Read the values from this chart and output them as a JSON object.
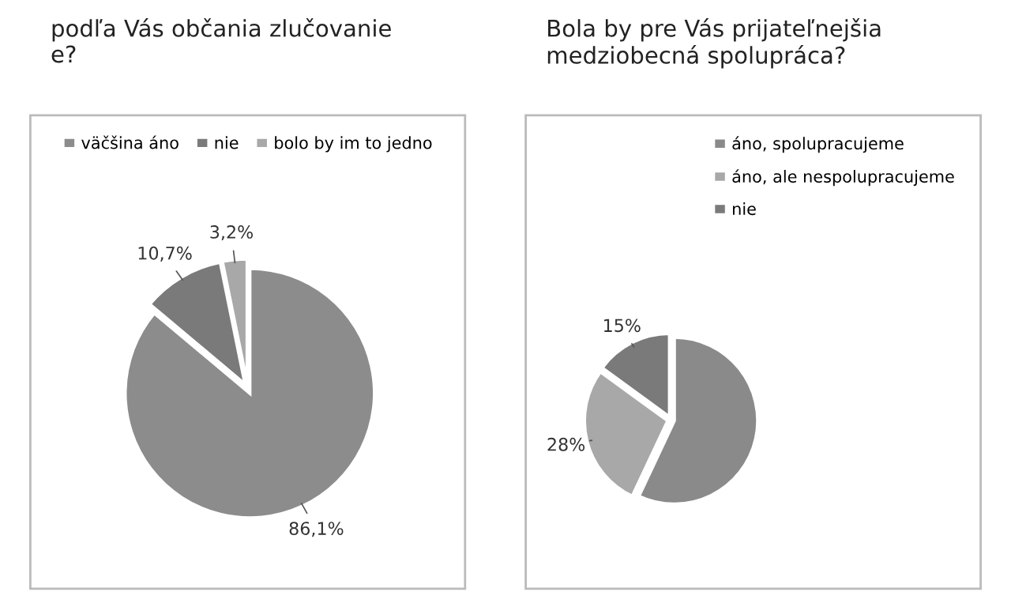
{
  "chart_data": [
    {
      "type": "pie",
      "title": "podľa Vás občania zlučovanie\ne?",
      "categories": [
        "väčšina áno",
        "nie",
        "bolo by im to jedno"
      ],
      "values": [
        86.1,
        10.7,
        3.2
      ],
      "colors": [
        "#8c8c8c",
        "#7a7a7a",
        "#a8a8a8"
      ],
      "value_labels": [
        "86,1%",
        "10,7%",
        "3,2%"
      ],
      "legend": "top"
    },
    {
      "type": "pie",
      "title": "Bola by pre Vás prijateľnejšia\nmedziobecná spolupráca?",
      "categories": [
        "áno, spolupracujeme",
        "áno, ale nespolupracujeme",
        "nie"
      ],
      "values": [
        57,
        28,
        15
      ],
      "colors": [
        "#8a8a8a",
        "#a8a8a8",
        "#7a7a7a"
      ],
      "value_labels": [
        null,
        "28%",
        "15%"
      ],
      "legend": "top right"
    }
  ]
}
